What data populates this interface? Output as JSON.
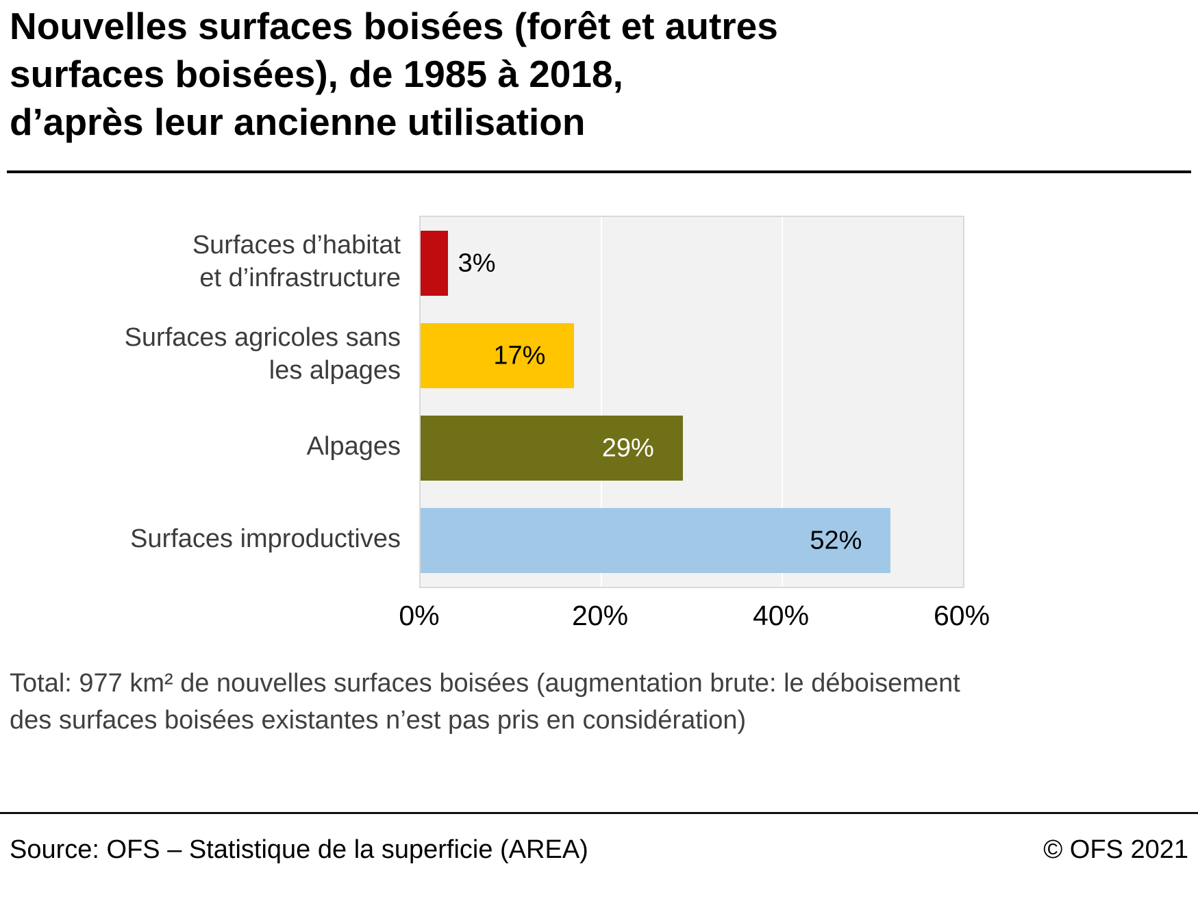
{
  "header": {
    "title": "Nouvelles surfaces boisées (forêt et autres\nsurfaces boisées), de 1985 à 2018,\nd’après leur ancienne utilisation"
  },
  "chart_data": {
    "type": "bar",
    "orientation": "horizontal",
    "categories": [
      "Surfaces d’habitat\net d’infrastructure",
      "Surfaces agricoles sans\nles alpages",
      "Alpages",
      "Surfaces improductives"
    ],
    "values": [
      3,
      17,
      29,
      52
    ],
    "value_labels": [
      "3%",
      "17%",
      "29%",
      "52%"
    ],
    "unit": "%",
    "xlim": [
      0,
      60
    ],
    "xticks": [
      {
        "value": 0,
        "label": "0%"
      },
      {
        "value": 20,
        "label": "20%"
      },
      {
        "value": 40,
        "label": "40%"
      },
      {
        "value": 60,
        "label": "60%"
      }
    ],
    "bar_colors": [
      "#c00b0f",
      "#ffc500",
      "#6f7017",
      "#a2c8e8"
    ],
    "value_label_placement": [
      "outside",
      "inside",
      "inside",
      "inside"
    ],
    "value_label_colors": [
      "#000000",
      "#000000",
      "#ffffff",
      "#000000"
    ],
    "plot_background": "#f2f2f2",
    "gridline_color": "#ffffff",
    "grid": true,
    "legend_position": "none"
  },
  "footnote": "Total: 977 km² de nouvelles surfaces boisées (augmentation brute: le déboisement\ndes surfaces boisées existantes n’est pas pris en considération)",
  "footer": {
    "source": "Source: OFS – Statistique de la superficie (AREA)",
    "copyright": "© OFS 2021"
  }
}
